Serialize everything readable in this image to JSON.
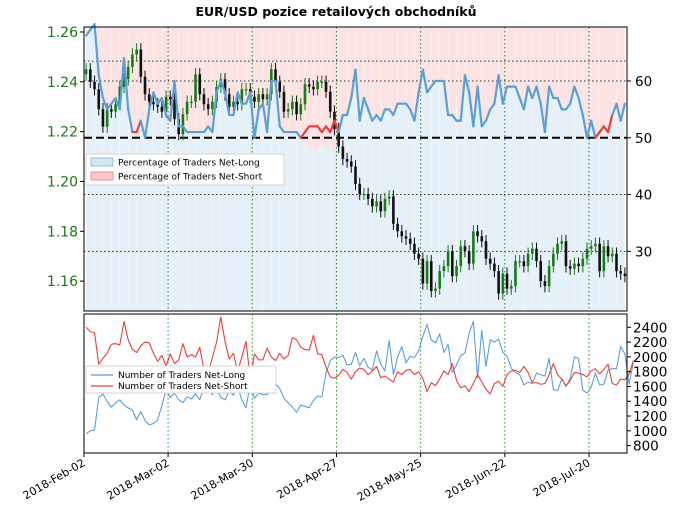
{
  "title": "EUR/USD pozice retailových obchodníků",
  "colors": {
    "long": "#5b9fd4",
    "short": "#e8403a",
    "price_up": "#1a7a1a",
    "price_down": "#111111",
    "long_fill": "#e6f0f8",
    "short_fill": "#fbe3e3",
    "left_axis_text": "#1a7a1a"
  },
  "chart_data": [
    {
      "type": "line",
      "panel": "top",
      "y_left": {
        "label": "",
        "ticks": [
          "1.16",
          "1.18",
          "1.20",
          "1.22",
          "1.24",
          "1.26"
        ],
        "ylim": [
          1.148,
          1.262
        ]
      },
      "y_right": {
        "label": "",
        "ticks": [
          "30",
          "40",
          "50",
          "60"
        ],
        "ylim": [
          19.5,
          69.5
        ]
      },
      "x": {
        "ticks": [
          "2018-Feb-02",
          "2018-Mar-02",
          "2018-Mar-30",
          "2018-Apr-27",
          "2018-May-25",
          "2018-Jun-22",
          "2018-Jul-20"
        ]
      },
      "grid": true,
      "legend": {
        "position": "center-left",
        "entries": [
          "Percentage of Traders Net-Long",
          "Percentage of Traders Net-Short"
        ]
      },
      "reference_line": {
        "value": 50,
        "style": "dashed"
      },
      "series_price": {
        "name": "",
        "type": "candlestick",
        "close": [
          1.245,
          1.24,
          1.237,
          1.229,
          1.222,
          1.229,
          1.228,
          1.231,
          1.238,
          1.241,
          1.246,
          1.251,
          1.253,
          1.242,
          1.235,
          1.232,
          1.231,
          1.23,
          1.228,
          1.234,
          1.233,
          1.225,
          1.219,
          1.227,
          1.232,
          1.232,
          1.243,
          1.235,
          1.231,
          1.229,
          1.232,
          1.238,
          1.241,
          1.235,
          1.23,
          1.232,
          1.231,
          1.237,
          1.237,
          1.234,
          1.232,
          1.235,
          1.233,
          1.235,
          1.245,
          1.24,
          1.236,
          1.228,
          1.229,
          1.232,
          1.227,
          1.231,
          1.239,
          1.238,
          1.237,
          1.24,
          1.24,
          1.236,
          1.228,
          1.221,
          1.214,
          1.209,
          1.208,
          1.206,
          1.199,
          1.195,
          1.195,
          1.193,
          1.19,
          1.192,
          1.188,
          1.193,
          1.194,
          1.183,
          1.18,
          1.178,
          1.177,
          1.175,
          1.171,
          1.169,
          1.159,
          1.168,
          1.156,
          1.157,
          1.164,
          1.166,
          1.172,
          1.162,
          1.166,
          1.174,
          1.172,
          1.167,
          1.18,
          1.178,
          1.176,
          1.169,
          1.167,
          1.164,
          1.155,
          1.163,
          1.157,
          1.158,
          1.168,
          1.168,
          1.166,
          1.171,
          1.173,
          1.168,
          1.16,
          1.158,
          1.166,
          1.171,
          1.175,
          1.176,
          1.166,
          1.165,
          1.167,
          1.166,
          1.169,
          1.173,
          1.174,
          1.175,
          1.164,
          1.174,
          1.17,
          1.171,
          1.164,
          1.163,
          1.162
        ]
      },
      "series": [
        {
          "name": "Percentage of Traders Net-Long",
          "values": [
            68,
            69,
            70,
            61,
            57,
            55,
            56,
            57,
            55,
            64,
            55,
            51,
            49,
            53,
            50,
            55,
            58,
            56,
            57,
            54,
            53,
            60,
            52,
            52,
            51,
            51,
            51,
            51,
            51,
            52,
            51,
            58,
            60,
            58,
            54,
            54,
            58,
            56,
            56,
            58,
            50,
            55,
            56,
            51,
            60,
            60,
            52,
            51,
            51,
            51,
            51,
            50,
            49,
            48,
            48,
            48,
            49,
            48,
            49,
            47,
            51,
            54,
            54,
            57,
            62,
            53,
            57,
            55,
            53,
            54,
            53,
            55,
            55,
            54,
            56,
            56,
            56,
            55,
            53,
            58,
            62,
            58,
            59,
            60,
            60,
            60,
            54,
            54,
            53,
            53,
            61,
            58,
            52,
            59,
            52,
            53,
            55,
            56,
            61,
            56,
            59,
            59,
            59,
            57,
            55,
            59,
            57,
            59,
            56,
            51,
            59,
            57,
            57,
            55,
            55,
            56,
            59,
            57,
            54,
            50,
            53,
            50,
            49,
            52,
            49,
            54,
            56,
            53,
            56,
            54,
            52
          ]
        },
        {
          "name": "Percentage of Traders Net-Short",
          "values": [
            31,
            32,
            30,
            39,
            43,
            45,
            44,
            43,
            45,
            36,
            45,
            49,
            51,
            47,
            50,
            45,
            42,
            44,
            43,
            46,
            47,
            40,
            48,
            48,
            49,
            49,
            49,
            49,
            49,
            48,
            49,
            42,
            40,
            42,
            46,
            46,
            42,
            44,
            44,
            42,
            50,
            45,
            44,
            49,
            40,
            40,
            48,
            49,
            49,
            49,
            49,
            50,
            51,
            52,
            52,
            52,
            51,
            52,
            51,
            53,
            49,
            46,
            46,
            43,
            38,
            47,
            43,
            45,
            47,
            46,
            47,
            45,
            45,
            46,
            44,
            44,
            44,
            45,
            47,
            42,
            38,
            42,
            41,
            40,
            40,
            40,
            46,
            46,
            47,
            47,
            39,
            42,
            48,
            41,
            48,
            47,
            45,
            44,
            39,
            44,
            41,
            41,
            41,
            43,
            45,
            41,
            43,
            41,
            44,
            49,
            41,
            43,
            43,
            45,
            45,
            44,
            41,
            43,
            46,
            50,
            47,
            50,
            51,
            48,
            51,
            46,
            44,
            47,
            44,
            46,
            48
          ]
        }
      ]
    },
    {
      "type": "line",
      "panel": "bottom",
      "y_right": {
        "label": "",
        "ticks": [
          "800",
          "1000",
          "1200",
          "1400",
          "1600",
          "1800",
          "2000",
          "2200",
          "2400"
        ],
        "ylim": [
          700,
          2580
        ]
      },
      "grid": true,
      "legend": {
        "position": "center-left",
        "entries": [
          "Number of Traders Net-Long",
          "Number of Traders Net-Short"
        ]
      },
      "series": [
        {
          "name": "Number of Traders Net-Long",
          "values": [
            960,
            1000,
            1010,
            1450,
            1500,
            1400,
            1320,
            1380,
            1420,
            1350,
            1310,
            1280,
            1150,
            1260,
            1140,
            1080,
            1100,
            1150,
            1340,
            1560,
            1450,
            1510,
            1420,
            1380,
            1460,
            1430,
            1500,
            1420,
            1600,
            1640,
            1490,
            1580,
            1450,
            1420,
            1540,
            1480,
            1590,
            1420,
            1310,
            1640,
            1440,
            1510,
            1490,
            1490,
            1580,
            1640,
            1570,
            1440,
            1380,
            1320,
            1250,
            1350,
            1330,
            1310,
            1410,
            1470,
            1460,
            1780,
            1950,
            2000,
            1990,
            2020,
            1890,
            1900,
            2060,
            1880,
            1980,
            1860,
            1820,
            2080,
            1900,
            1810,
            2220,
            1760,
            2000,
            2140,
            1920,
            2010,
            1990,
            2080,
            2280,
            2440,
            2230,
            2190,
            2310,
            2060,
            2170,
            1790,
            1890,
            2020,
            2050,
            2320,
            2480,
            1720,
            2360,
            1870,
            2230,
            2200,
            2240,
            2060,
            2010,
            1850,
            1790,
            1760,
            1620,
            1660,
            1640,
            1780,
            1760,
            1740,
            1980,
            1560,
            1540,
            1700,
            1600,
            1710,
            2000,
            1980,
            1550,
            1510,
            1590,
            1780,
            1620,
            1630,
            1820,
            1840,
            1840,
            2140,
            2040,
            1630,
            1920
          ]
        },
        {
          "name": "Number of Traders Net-Short",
          "values": [
            2400,
            2340,
            2330,
            1900,
            1980,
            2050,
            2170,
            2180,
            2160,
            2480,
            2230,
            2100,
            2060,
            2150,
            2200,
            2190,
            2050,
            1940,
            2020,
            1880,
            2040,
            1910,
            1960,
            2180,
            2000,
            2030,
            2000,
            2130,
            1820,
            1790,
            1990,
            2200,
            2540,
            2210,
            1970,
            2050,
            1800,
            2000,
            2210,
            1690,
            2040,
            1960,
            1960,
            2120,
            2000,
            1950,
            2050,
            1970,
            2020,
            2260,
            2230,
            2130,
            2100,
            2090,
            2290,
            2040,
            2030,
            1860,
            1730,
            1710,
            1750,
            1830,
            1790,
            1700,
            1800,
            1850,
            1830,
            1760,
            1810,
            1870,
            1720,
            1740,
            1700,
            1660,
            1800,
            1760,
            1820,
            1830,
            1760,
            1800,
            1710,
            1530,
            1650,
            1610,
            1700,
            1810,
            1760,
            1910,
            1680,
            1580,
            1610,
            1530,
            1640,
            1760,
            1660,
            1560,
            1500,
            1640,
            1670,
            1600,
            1760,
            1810,
            1820,
            1790,
            1870,
            1790,
            1650,
            1650,
            1630,
            1640,
            1760,
            1910,
            1760,
            1700,
            1610,
            1680,
            1790,
            1780,
            1760,
            1730,
            1810,
            1840,
            1770,
            1830,
            1900,
            1640,
            1620,
            1700,
            1690,
            1770,
            1950
          ]
        }
      ]
    }
  ]
}
